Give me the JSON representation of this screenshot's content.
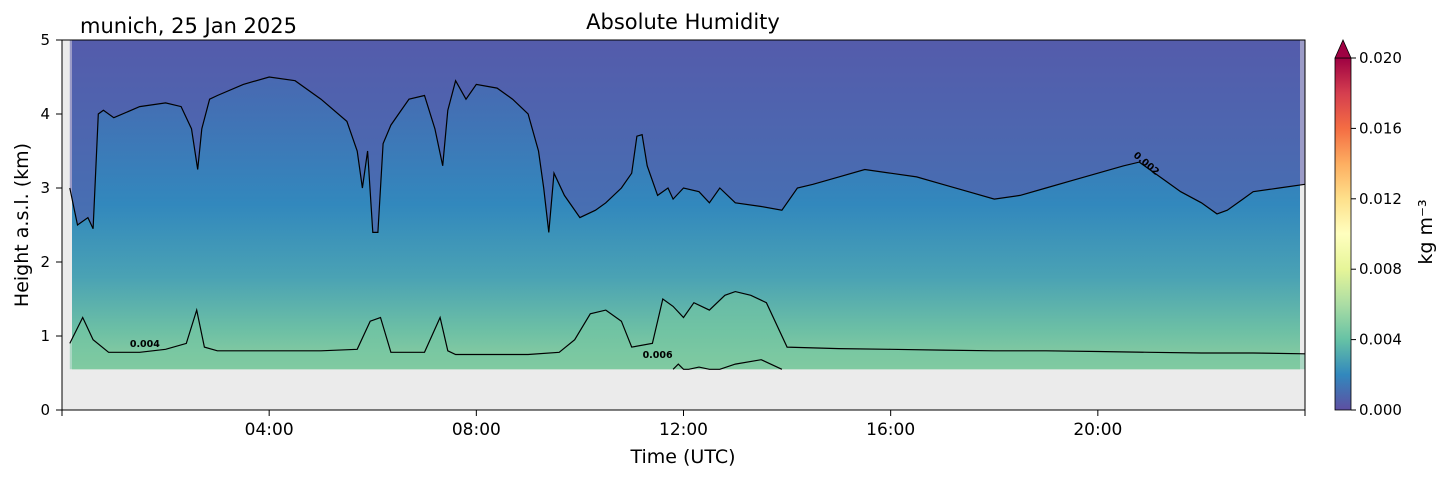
{
  "chart_data": {
    "type": "heatmap",
    "title": "Absolute Humidity",
    "location_label": "munich, 25 Jan 2025",
    "xlabel": "Time (UTC)",
    "ylabel": "Height a.s.l. (km)",
    "xlim": [
      0,
      24
    ],
    "ylim": [
      0,
      5
    ],
    "x_tick_values": [
      4,
      8,
      12,
      16,
      20
    ],
    "x_tick_labels": [
      "04:00",
      "08:00",
      "12:00",
      "16:00",
      "20:00"
    ],
    "y_tick_values": [
      0,
      1,
      2,
      3,
      4,
      5
    ],
    "y_tick_labels": [
      "0",
      "1",
      "2",
      "3",
      "4",
      "5"
    ],
    "data_bottom_km": 0.55,
    "colorbar": {
      "label": "kg m⁻³",
      "min": 0.0,
      "max": 0.02,
      "extend": "max",
      "tick_values": [
        0.0,
        0.004,
        0.008,
        0.012,
        0.016,
        0.02
      ],
      "tick_labels": [
        "0.000",
        "0.004",
        "0.008",
        "0.012",
        "0.016",
        "0.020"
      ],
      "palette": [
        "#5e4fa2",
        "#3288bd",
        "#66c2a5",
        "#abdda4",
        "#e6f598",
        "#ffffbf",
        "#fee08b",
        "#fdae61",
        "#f46d43",
        "#d53e4f",
        "#9e0142"
      ]
    },
    "contour_labels": [
      {
        "text": "0.002",
        "x": 20.9,
        "y": 3.3,
        "angle": 40
      },
      {
        "text": "0.004",
        "x": 1.6,
        "y": 0.85,
        "angle": 0
      },
      {
        "text": "0.006",
        "x": 11.5,
        "y": 0.7,
        "angle": 0
      }
    ],
    "contour_0002_km": {
      "time": [
        0.15,
        0.3,
        0.5,
        0.6,
        0.7,
        0.8,
        1.0,
        1.5,
        2.0,
        2.3,
        2.5,
        2.62,
        2.7,
        2.85,
        3.0,
        3.5,
        4.0,
        4.5,
        5.0,
        5.5,
        5.7,
        5.8,
        5.9,
        6.0,
        6.1,
        6.2,
        6.35,
        6.5,
        6.7,
        7.0,
        7.2,
        7.35,
        7.45,
        7.6,
        7.8,
        8.0,
        8.4,
        8.7,
        9.0,
        9.2,
        9.3,
        9.4,
        9.5,
        9.7,
        10.0,
        10.3,
        10.5,
        10.8,
        11.0,
        11.1,
        11.2,
        11.3,
        11.5,
        11.7,
        11.8,
        12.0,
        12.3,
        12.5,
        12.7,
        13.0,
        13.5,
        13.9,
        14.2,
        14.5,
        15.0,
        15.5,
        16.0,
        16.5,
        17.0,
        17.5,
        18.0,
        18.5,
        19.0,
        19.5,
        20.0,
        20.5,
        20.8,
        21.0,
        21.3,
        21.6,
        22.0,
        22.3,
        22.5,
        22.8,
        23.0,
        23.5,
        24.0
      ],
      "value": [
        3.0,
        2.5,
        2.6,
        2.45,
        4.0,
        4.05,
        3.95,
        4.1,
        4.15,
        4.1,
        3.8,
        3.25,
        3.8,
        4.2,
        4.25,
        4.4,
        4.5,
        4.45,
        4.2,
        3.9,
        3.5,
        3.0,
        3.5,
        2.4,
        2.4,
        3.6,
        3.85,
        4.0,
        4.2,
        4.25,
        3.8,
        3.3,
        4.05,
        4.45,
        4.2,
        4.4,
        4.35,
        4.2,
        4.0,
        3.5,
        3.0,
        2.4,
        3.2,
        2.9,
        2.6,
        2.7,
        2.8,
        3.0,
        3.2,
        3.7,
        3.72,
        3.3,
        2.9,
        3.0,
        2.85,
        3.0,
        2.95,
        2.8,
        3.0,
        2.8,
        2.75,
        2.7,
        3.0,
        3.05,
        3.15,
        3.25,
        3.2,
        3.15,
        3.05,
        2.95,
        2.85,
        2.9,
        3.0,
        3.1,
        3.2,
        3.3,
        3.35,
        3.25,
        3.1,
        2.95,
        2.8,
        2.65,
        2.7,
        2.85,
        2.95,
        3.0,
        3.05
      ]
    },
    "contour_0004_km": {
      "time": [
        0.15,
        0.4,
        0.6,
        0.9,
        1.5,
        2.0,
        2.4,
        2.6,
        2.75,
        3.0,
        4.0,
        5.0,
        5.7,
        5.95,
        6.15,
        6.35,
        7.0,
        7.3,
        7.45,
        7.6,
        8.0,
        9.0,
        9.6,
        9.9,
        10.2,
        10.5,
        10.8,
        11.0,
        11.4,
        11.6,
        11.8,
        12.0,
        12.2,
        12.5,
        12.8,
        13.0,
        13.3,
        13.6,
        14.0,
        15.0,
        16.0,
        17.0,
        18.0,
        19.0,
        20.0,
        21.0,
        22.0,
        23.0,
        24.0
      ],
      "value": [
        0.9,
        1.25,
        0.95,
        0.78,
        0.78,
        0.82,
        0.9,
        1.35,
        0.85,
        0.8,
        0.8,
        0.8,
        0.82,
        1.2,
        1.25,
        0.78,
        0.78,
        1.25,
        0.8,
        0.75,
        0.75,
        0.75,
        0.78,
        0.95,
        1.3,
        1.35,
        1.2,
        0.85,
        0.9,
        1.5,
        1.4,
        1.25,
        1.45,
        1.35,
        1.55,
        1.6,
        1.55,
        1.45,
        0.85,
        0.83,
        0.82,
        0.81,
        0.8,
        0.8,
        0.79,
        0.78,
        0.77,
        0.77,
        0.76
      ]
    },
    "contour_0006_km": {
      "time": [
        11.8,
        11.9,
        12.0,
        12.1,
        12.3,
        12.5,
        12.7,
        13.0,
        13.5,
        13.9
      ],
      "value": [
        0.55,
        0.62,
        0.55,
        0.55,
        0.58,
        0.55,
        0.55,
        0.62,
        0.68,
        0.55
      ]
    }
  }
}
